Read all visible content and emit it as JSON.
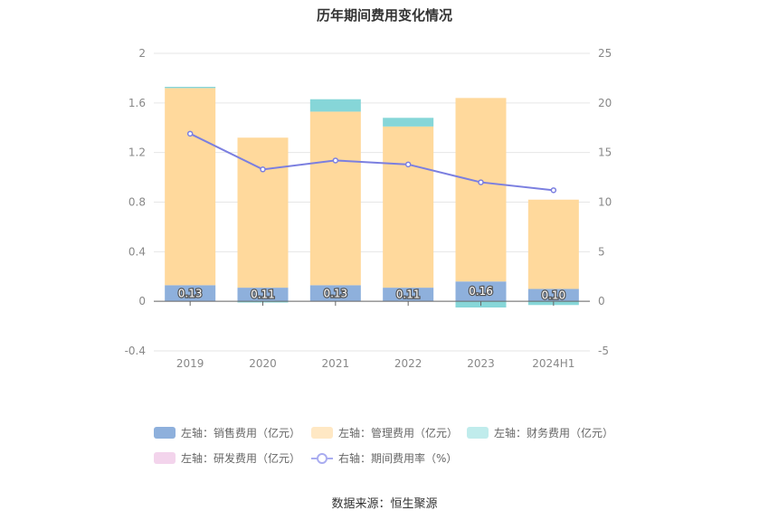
{
  "title": "历年期间费用变化情况",
  "source": "数据来源：恒生聚源",
  "chart_data": {
    "type": "bar",
    "stacked": true,
    "categories": [
      "2019",
      "2020",
      "2021",
      "2022",
      "2023",
      "2024H1"
    ],
    "left_axis": {
      "min": -0.4,
      "max": 2,
      "ticks": [
        "-0.4",
        "0",
        "0.4",
        "0.8",
        "1.2",
        "1.6",
        "2"
      ]
    },
    "right_axis": {
      "min": -5,
      "max": 25,
      "ticks": [
        "-5",
        "0",
        "5",
        "10",
        "15",
        "20",
        "25"
      ]
    },
    "series": [
      {
        "name": "左轴：销售费用（亿元）",
        "color": "#8eb0dc",
        "values": [
          0.13,
          0.11,
          0.13,
          0.11,
          0.16,
          0.1
        ],
        "labels": [
          "0.13",
          "0.11",
          "0.13",
          "0.11",
          "0.16",
          "0.10"
        ]
      },
      {
        "name": "左轴：管理费用（亿元）",
        "color": "#ffd99c",
        "values": [
          1.59,
          1.21,
          1.4,
          1.3,
          1.48,
          0.72
        ]
      },
      {
        "name": "左轴：财务费用（亿元）",
        "color": "#86d6d8",
        "values": [
          0.01,
          -0.01,
          0.1,
          0.07,
          -0.05,
          -0.03
        ]
      },
      {
        "name": "左轴：研发费用（亿元）",
        "color": "#f3d4ec",
        "values": [
          0,
          0,
          0,
          0,
          0,
          0
        ]
      }
    ],
    "line_series": {
      "name": "右轴：期间费用率（%）",
      "color": "#7b7fe0",
      "values": [
        16.9,
        13.3,
        14.2,
        13.8,
        12.0,
        11.2
      ]
    },
    "grid": true,
    "legend_position": "bottom"
  }
}
